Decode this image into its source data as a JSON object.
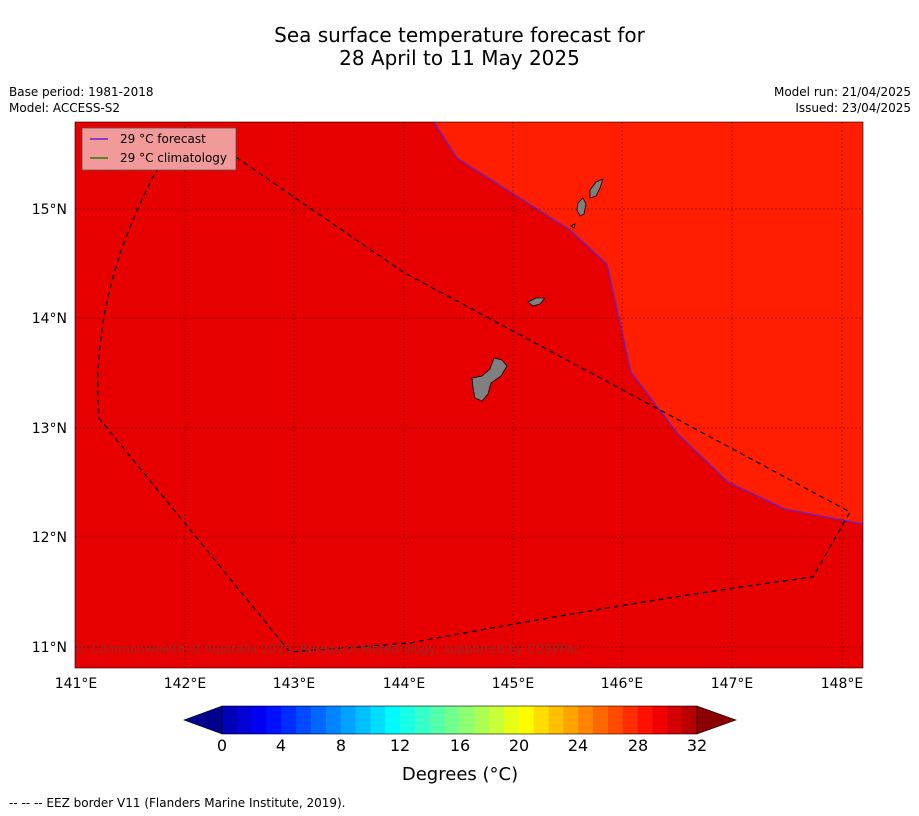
{
  "header": {
    "title_line1": "Sea surface temperature forecast for",
    "title_line2": "28 April to 11 May 2025",
    "base_period": "Base period: 1981-2018",
    "model": "Model: ACCESS-S2",
    "model_run": "Model run: 21/04/2025",
    "issued": "Issued: 23/04/2025"
  },
  "map": {
    "lon_range": [
      141.0,
      148.2
    ],
    "lat_range": [
      10.8,
      15.8
    ],
    "lon_ticks": [
      "141°E",
      "142°E",
      "143°E",
      "144°E",
      "145°E",
      "146°E",
      "147°E",
      "148°E"
    ],
    "lat_ticks": [
      "15°N",
      "14°N",
      "13°N",
      "12°N",
      "11°N"
    ],
    "colors": {
      "region_a": "#e60000",
      "region_b": "#ff1e00",
      "land": "#808080",
      "forecast_line": "#6a1fd0",
      "climatology_line": "#2a7a00"
    },
    "legend": {
      "forecast": "29 °C  forecast",
      "climatology": "29 °C  climatology"
    },
    "copyright": "© Commonwealth of Australia 2025, Bureau of Meteorology, supported by COSPPac"
  },
  "colorbar": {
    "ticks": [
      "0",
      "4",
      "8",
      "12",
      "16",
      "20",
      "24",
      "28",
      "32"
    ],
    "label": "Degrees (°C)",
    "range": [
      0,
      32
    ],
    "step": 1
  },
  "footer": {
    "eez_note": "--  --  -- EEZ border V11 (Flanders Marine Institute, 2019)."
  }
}
